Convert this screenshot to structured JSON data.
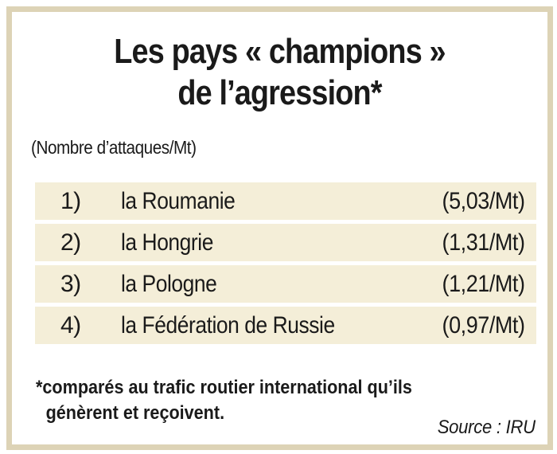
{
  "colors": {
    "frame_border": "#ddd3b6",
    "row_background": "#f4eed8",
    "text": "#1a1a1a"
  },
  "title": {
    "line1": "Les pays « champions »",
    "line2": "de l’agression*"
  },
  "subtitle": "(Nombre d’attaques/Mt)",
  "ranking": [
    {
      "rank": "1)",
      "country": "la Roumanie",
      "rate": "(5,03/Mt)"
    },
    {
      "rank": "2)",
      "country": "la Hongrie",
      "rate": "(1,31/Mt)"
    },
    {
      "rank": "3)",
      "country": "la Pologne",
      "rate": "(1,21/Mt)"
    },
    {
      "rank": "4)",
      "country": "la Fédération de Russie",
      "rate": "(0,97/Mt)"
    }
  ],
  "footnote": {
    "line1": "*comparés au trafic routier international qu’ils",
    "line2": "génèrent et reçoivent."
  },
  "source": "Source : IRU"
}
